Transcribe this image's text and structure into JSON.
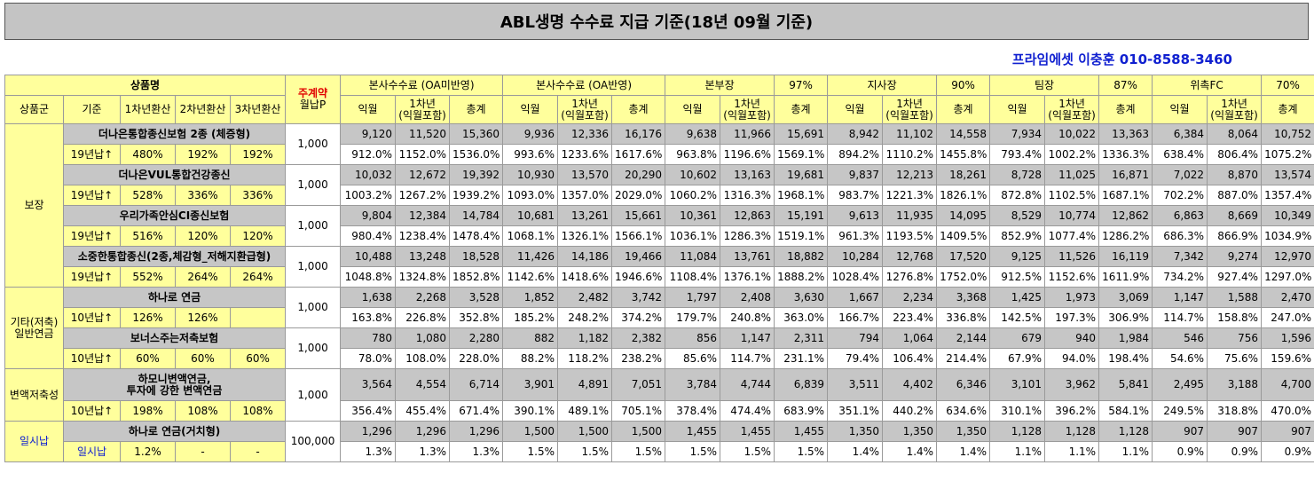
{
  "title": "ABL생명 수수료 지급 기준(18년 09월 기준)",
  "contact": "프라임에셋 이충훈 010-8588-3460",
  "header": {
    "product_name": "상품명",
    "monthly_payment_top": "주계약",
    "monthly_payment_bottom": "월납P",
    "cols": [
      "상품군",
      "기준",
      "1차년환산",
      "2차년환산",
      "3차년환산"
    ],
    "groups": [
      {
        "label": "본사수수료 (OA미반영)",
        "pct": ""
      },
      {
        "label": "본사수수료 (OA반영)",
        "pct": ""
      },
      {
        "label": "본부장",
        "pct": "97%"
      },
      {
        "label": "지사장",
        "pct": "90%"
      },
      {
        "label": "팀장",
        "pct": "87%"
      },
      {
        "label": "위촉FC",
        "pct": "70%"
      }
    ],
    "sub1": "익월",
    "sub2a": "1차년",
    "sub2b": "(익월포함)",
    "sub3": "총계"
  },
  "categories": [
    {
      "name": "보장",
      "products": [
        {
          "name": "더나은통합종신보험 2종 (체증형)",
          "basis": "19년납↑",
          "conv": [
            "480%",
            "192%",
            "192%"
          ],
          "premium": "1,000",
          "amounts": [
            "9,120",
            "11,520",
            "15,360",
            "9,936",
            "12,336",
            "16,176",
            "9,638",
            "11,966",
            "15,691",
            "8,942",
            "11,102",
            "14,558",
            "7,934",
            "10,022",
            "13,363",
            "6,384",
            "8,064",
            "10,752"
          ],
          "rates": [
            "912.0%",
            "1152.0%",
            "1536.0%",
            "993.6%",
            "1233.6%",
            "1617.6%",
            "963.8%",
            "1196.6%",
            "1569.1%",
            "894.2%",
            "1110.2%",
            "1455.8%",
            "793.4%",
            "1002.2%",
            "1336.3%",
            "638.4%",
            "806.4%",
            "1075.2%"
          ]
        },
        {
          "name": "더나은VUL통합건강종신",
          "basis": "19년납↑",
          "conv": [
            "528%",
            "336%",
            "336%"
          ],
          "premium": "1,000",
          "amounts": [
            "10,032",
            "12,672",
            "19,392",
            "10,930",
            "13,570",
            "20,290",
            "10,602",
            "13,163",
            "19,681",
            "9,837",
            "12,213",
            "18,261",
            "8,728",
            "11,025",
            "16,871",
            "7,022",
            "8,870",
            "13,574"
          ],
          "rates": [
            "1003.2%",
            "1267.2%",
            "1939.2%",
            "1093.0%",
            "1357.0%",
            "2029.0%",
            "1060.2%",
            "1316.3%",
            "1968.1%",
            "983.7%",
            "1221.3%",
            "1826.1%",
            "872.8%",
            "1102.5%",
            "1687.1%",
            "702.2%",
            "887.0%",
            "1357.4%"
          ]
        },
        {
          "name": "우리가족안심CI종신보험",
          "basis": "19년납↑",
          "conv": [
            "516%",
            "120%",
            "120%"
          ],
          "premium": "1,000",
          "amounts": [
            "9,804",
            "12,384",
            "14,784",
            "10,681",
            "13,261",
            "15,661",
            "10,361",
            "12,863",
            "15,191",
            "9,613",
            "11,935",
            "14,095",
            "8,529",
            "10,774",
            "12,862",
            "6,863",
            "8,669",
            "10,349"
          ],
          "rates": [
            "980.4%",
            "1238.4%",
            "1478.4%",
            "1068.1%",
            "1326.1%",
            "1566.1%",
            "1036.1%",
            "1286.3%",
            "1519.1%",
            "961.3%",
            "1193.5%",
            "1409.5%",
            "852.9%",
            "1077.4%",
            "1286.2%",
            "686.3%",
            "866.9%",
            "1034.9%"
          ]
        },
        {
          "name": "소중한통합종신(2종,체감형_저해지환급형)",
          "basis": "19년납↑",
          "conv": [
            "552%",
            "264%",
            "264%"
          ],
          "premium": "1,000",
          "amounts": [
            "10,488",
            "13,248",
            "18,528",
            "11,426",
            "14,186",
            "19,466",
            "11,084",
            "13,761",
            "18,882",
            "10,284",
            "12,768",
            "17,520",
            "9,125",
            "11,526",
            "16,119",
            "7,342",
            "9,274",
            "12,970"
          ],
          "rates": [
            "1048.8%",
            "1324.8%",
            "1852.8%",
            "1142.6%",
            "1418.6%",
            "1946.6%",
            "1108.4%",
            "1376.1%",
            "1888.2%",
            "1028.4%",
            "1276.8%",
            "1752.0%",
            "912.5%",
            "1152.6%",
            "1611.9%",
            "734.2%",
            "927.4%",
            "1297.0%"
          ]
        }
      ]
    },
    {
      "name": "기타(저축)\n일반연금",
      "products": [
        {
          "name": "하나로 연금",
          "basis": "10년납↑",
          "conv": [
            "126%",
            "126%",
            ""
          ],
          "premium": "1,000",
          "amounts": [
            "1,638",
            "2,268",
            "3,528",
            "1,852",
            "2,482",
            "3,742",
            "1,797",
            "2,408",
            "3,630",
            "1,667",
            "2,234",
            "3,368",
            "1,425",
            "1,973",
            "3,069",
            "1,147",
            "1,588",
            "2,470"
          ],
          "rates": [
            "163.8%",
            "226.8%",
            "352.8%",
            "185.2%",
            "248.2%",
            "374.2%",
            "179.7%",
            "240.8%",
            "363.0%",
            "166.7%",
            "223.4%",
            "336.8%",
            "142.5%",
            "197.3%",
            "306.9%",
            "114.7%",
            "158.8%",
            "247.0%"
          ]
        },
        {
          "name": "보너스주는저축보험",
          "basis": "10년납↑",
          "conv": [
            "60%",
            "60%",
            "60%"
          ],
          "premium": "1,000",
          "amounts": [
            "780",
            "1,080",
            "2,280",
            "882",
            "1,182",
            "2,382",
            "856",
            "1,147",
            "2,311",
            "794",
            "1,064",
            "2,144",
            "679",
            "940",
            "1,984",
            "546",
            "756",
            "1,596"
          ],
          "rates": [
            "78.0%",
            "108.0%",
            "228.0%",
            "88.2%",
            "118.2%",
            "238.2%",
            "85.6%",
            "114.7%",
            "231.1%",
            "79.4%",
            "106.4%",
            "214.4%",
            "67.9%",
            "94.0%",
            "198.4%",
            "54.6%",
            "75.6%",
            "159.6%"
          ]
        }
      ]
    },
    {
      "name": "변액저축성",
      "products": [
        {
          "name": "하모니변액연금,\n투자에 강한 변액연금",
          "basis": "10년납↑",
          "conv": [
            "198%",
            "108%",
            "108%"
          ],
          "premium": "1,000",
          "amounts": [
            "3,564",
            "4,554",
            "6,714",
            "3,901",
            "4,891",
            "7,051",
            "3,784",
            "4,744",
            "6,839",
            "3,511",
            "4,402",
            "6,346",
            "3,101",
            "3,962",
            "5,841",
            "2,495",
            "3,188",
            "4,700"
          ],
          "rates": [
            "356.4%",
            "455.4%",
            "671.4%",
            "390.1%",
            "489.1%",
            "705.1%",
            "378.4%",
            "474.4%",
            "683.9%",
            "351.1%",
            "440.2%",
            "634.6%",
            "310.1%",
            "396.2%",
            "584.1%",
            "249.5%",
            "318.8%",
            "470.0%"
          ]
        }
      ]
    },
    {
      "name": "일시납",
      "products": [
        {
          "name": "하나로 연금(거치형)",
          "basis": "일시납",
          "conv": [
            "1.2%",
            "-",
            "-"
          ],
          "premium": "100,000",
          "amounts": [
            "1,296",
            "1,296",
            "1,296",
            "1,500",
            "1,500",
            "1,500",
            "1,455",
            "1,455",
            "1,455",
            "1,350",
            "1,350",
            "1,350",
            "1,128",
            "1,128",
            "1,128",
            "907",
            "907",
            "907"
          ],
          "rates": [
            "1.3%",
            "1.3%",
            "1.3%",
            "1.5%",
            "1.5%",
            "1.5%",
            "1.5%",
            "1.5%",
            "1.5%",
            "1.4%",
            "1.4%",
            "1.4%",
            "1.1%",
            "1.1%",
            "1.1%",
            "0.9%",
            "0.9%",
            "0.9%"
          ]
        }
      ]
    }
  ]
}
